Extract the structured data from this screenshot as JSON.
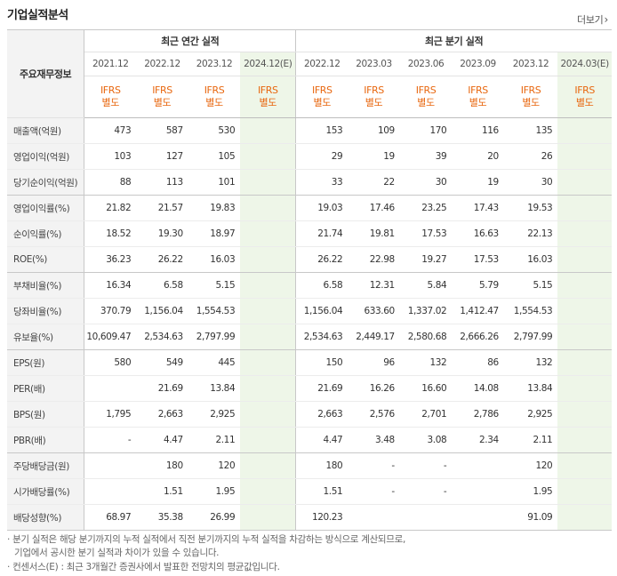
{
  "header": {
    "title": "기업실적분석",
    "more_label": "더보기"
  },
  "table": {
    "row_header_label": "주요재무정보",
    "groups": {
      "annual": "최근 연간 실적",
      "quarterly": "최근 분기 실적"
    },
    "periods": [
      "2021.12",
      "2022.12",
      "2023.12",
      "2024.12(E)",
      "2022.12",
      "2023.03",
      "2023.06",
      "2023.09",
      "2023.12",
      "2024.03(E)"
    ],
    "ifrs": [
      "IFRS\n별도",
      "IFRS\n별도",
      "IFRS\n별도",
      "IFRS\n별도",
      "IFRS\n별도",
      "IFRS\n별도",
      "IFRS\n별도",
      "IFRS\n별도",
      "IFRS\n별도",
      "IFRS\n별도"
    ],
    "rows": [
      {
        "label": "매출액(억원)",
        "values": [
          "473",
          "587",
          "530",
          "",
          "153",
          "109",
          "170",
          "116",
          "135",
          ""
        ]
      },
      {
        "label": "영업이익(억원)",
        "values": [
          "103",
          "127",
          "105",
          "",
          "29",
          "19",
          "39",
          "20",
          "26",
          ""
        ]
      },
      {
        "label": "당기순이익(억원)",
        "values": [
          "88",
          "113",
          "101",
          "",
          "33",
          "22",
          "30",
          "19",
          "30",
          ""
        ]
      },
      {
        "label": "영업이익률(%)",
        "values": [
          "21.82",
          "21.57",
          "19.83",
          "",
          "19.03",
          "17.46",
          "23.25",
          "17.43",
          "19.53",
          ""
        ]
      },
      {
        "label": "순이익률(%)",
        "values": [
          "18.52",
          "19.30",
          "18.97",
          "",
          "21.74",
          "19.81",
          "17.53",
          "16.63",
          "22.13",
          ""
        ]
      },
      {
        "label": "ROE(%)",
        "values": [
          "36.23",
          "26.22",
          "16.03",
          "",
          "26.22",
          "22.98",
          "19.27",
          "17.53",
          "16.03",
          ""
        ]
      },
      {
        "label": "부채비율(%)",
        "values": [
          "16.34",
          "6.58",
          "5.15",
          "",
          "6.58",
          "12.31",
          "5.84",
          "5.79",
          "5.15",
          ""
        ]
      },
      {
        "label": "당좌비율(%)",
        "values": [
          "370.79",
          "1,156.04",
          "1,554.53",
          "",
          "1,156.04",
          "633.60",
          "1,337.02",
          "1,412.47",
          "1,554.53",
          ""
        ]
      },
      {
        "label": "유보율(%)",
        "values": [
          "10,609.47",
          "2,534.63",
          "2,797.99",
          "",
          "2,534.63",
          "2,449.17",
          "2,580.68",
          "2,666.26",
          "2,797.99",
          ""
        ]
      },
      {
        "label": "EPS(원)",
        "values": [
          "580",
          "549",
          "445",
          "",
          "150",
          "96",
          "132",
          "86",
          "132",
          ""
        ]
      },
      {
        "label": "PER(배)",
        "values": [
          "",
          "21.69",
          "13.84",
          "",
          "21.69",
          "16.26",
          "16.60",
          "14.08",
          "13.84",
          ""
        ]
      },
      {
        "label": "BPS(원)",
        "values": [
          "1,795",
          "2,663",
          "2,925",
          "",
          "2,663",
          "2,576",
          "2,701",
          "2,786",
          "2,925",
          ""
        ]
      },
      {
        "label": "PBR(배)",
        "values": [
          "-",
          "4.47",
          "2.11",
          "",
          "4.47",
          "3.48",
          "3.08",
          "2.34",
          "2.11",
          ""
        ]
      },
      {
        "label": "주당배당금(원)",
        "values": [
          "",
          "180",
          "120",
          "",
          "180",
          "-",
          "-",
          "",
          "120",
          ""
        ]
      },
      {
        "label": "시가배당률(%)",
        "values": [
          "",
          "1.51",
          "1.95",
          "",
          "1.51",
          "-",
          "-",
          "",
          "1.95",
          ""
        ]
      },
      {
        "label": "배당성향(%)",
        "values": [
          "68.97",
          "35.38",
          "26.99",
          "",
          "120.23",
          "",
          "",
          "",
          "91.09",
          ""
        ]
      }
    ]
  },
  "notes": [
    "· 분기 실적은 해당 분기까지의 누적 실적에서 직전 분기까지의 누적 실적을 차감하는 방식으로 계산되므로,",
    "기업에서 공시한 분기 실적과 차이가 있을 수 있습니다.",
    "· 컨센서스(E) : 최근 3개월간 증권사에서 발표한 전망치의 평균값입니다."
  ]
}
